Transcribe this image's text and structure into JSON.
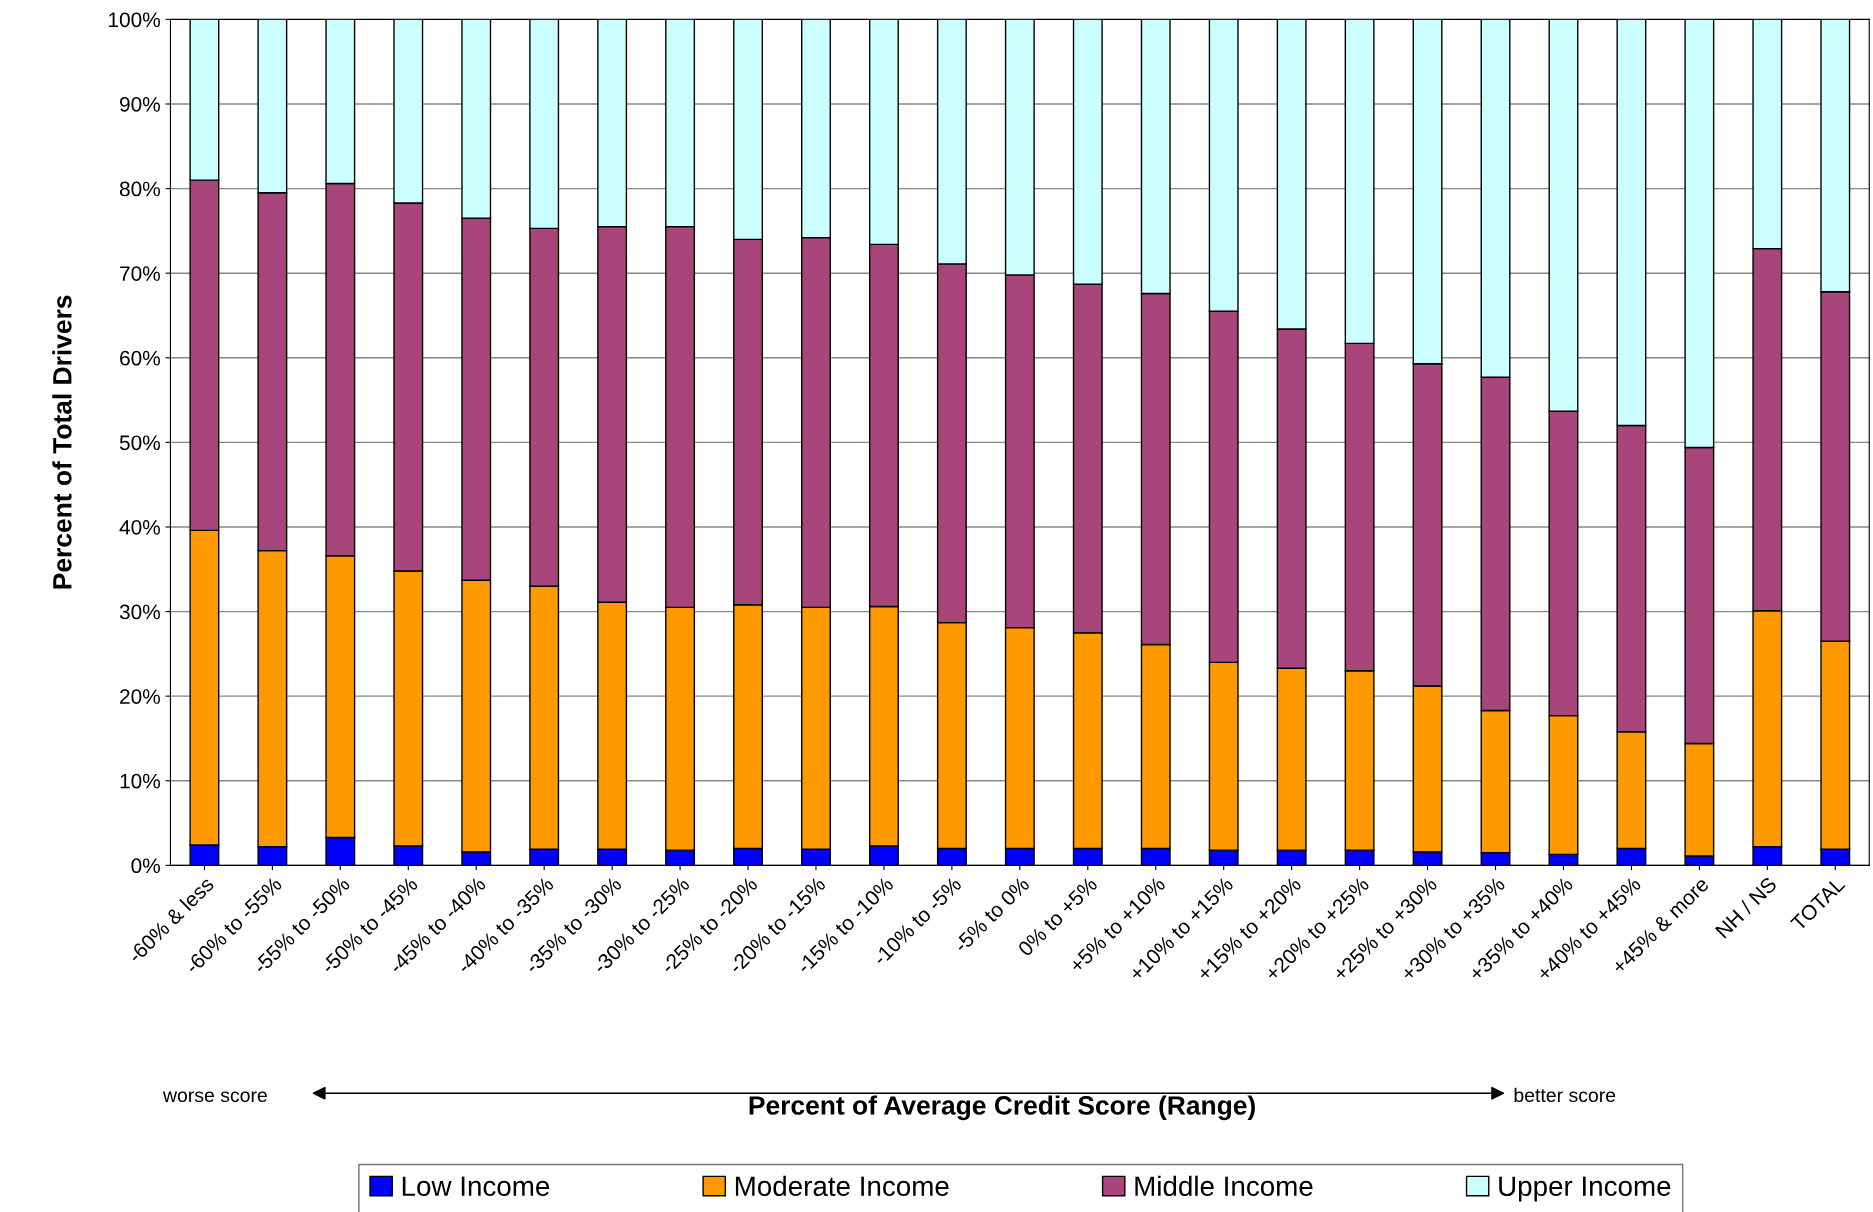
{
  "chart_data": {
    "type": "bar",
    "stacked": true,
    "xlabel": "Percent of Average Credit Score (Range)",
    "ylabel": "Percent of Total Drivers",
    "categories": [
      "-60% & less",
      "-60% to -55%",
      "-55% to -50%",
      "-50% to -45%",
      "-45% to -40%",
      "-40% to -35%",
      "-35% to -30%",
      "-30% to -25%",
      "-25% to -20%",
      "-20% to -15%",
      "-15% to -10%",
      "-10% to -5%",
      "-5% to 0%",
      "0% to +5%",
      "+5% to +10%",
      "+10% to +15%",
      "+15% to +20%",
      "+20% to +25%",
      "+25% to +30%",
      "+30% to +35%",
      "+35% to +40%",
      "+40% to +45%",
      "+45% & more",
      "NH / NS",
      "TOTAL"
    ],
    "series": [
      {
        "name": "Low Income",
        "color": "#0000ff",
        "values": [
          2.4,
          2.2,
          3.3,
          2.3,
          1.6,
          1.9,
          1.9,
          1.8,
          2.0,
          1.9,
          2.3,
          2.0,
          2.0,
          2.0,
          2.0,
          1.8,
          1.8,
          1.8,
          1.6,
          1.5,
          1.3,
          2.0,
          1.1,
          2.2,
          1.9
        ]
      },
      {
        "name": "Moderate Income",
        "color": "#ff9900",
        "values": [
          37.2,
          35.0,
          33.3,
          32.5,
          32.1,
          31.1,
          29.2,
          28.7,
          28.8,
          28.6,
          28.3,
          26.7,
          26.1,
          25.5,
          24.1,
          22.2,
          21.5,
          21.2,
          19.6,
          16.8,
          16.4,
          13.8,
          13.3,
          27.9,
          24.6
        ]
      },
      {
        "name": "Middle Income",
        "color": "#a8457a",
        "values": [
          41.4,
          42.3,
          44.0,
          43.5,
          42.8,
          42.3,
          44.4,
          45.0,
          43.2,
          43.7,
          42.8,
          42.4,
          41.7,
          41.2,
          41.5,
          41.5,
          40.1,
          38.7,
          38.1,
          39.4,
          36.0,
          36.2,
          35.0,
          42.8,
          41.3
        ]
      },
      {
        "name": "Upper Income",
        "color": "#ccffff",
        "values": [
          19.0,
          20.5,
          19.4,
          21.7,
          23.5,
          24.7,
          24.5,
          24.5,
          26.0,
          25.8,
          26.6,
          28.9,
          30.2,
          31.3,
          32.4,
          34.5,
          36.6,
          38.3,
          40.7,
          42.3,
          46.3,
          48.0,
          50.6,
          27.1,
          32.2
        ]
      }
    ],
    "ylim": [
      0,
      100
    ],
    "yticks": [
      {
        "value": 0,
        "label": "0%"
      },
      {
        "value": 10,
        "label": "10%"
      },
      {
        "value": 20,
        "label": "20%"
      },
      {
        "value": 30,
        "label": "30%"
      },
      {
        "value": 40,
        "label": "40%"
      },
      {
        "value": 50,
        "label": "50%"
      },
      {
        "value": 60,
        "label": "60%"
      },
      {
        "value": 70,
        "label": "70%"
      },
      {
        "value": 80,
        "label": "80%"
      },
      {
        "value": 90,
        "label": "90%"
      },
      {
        "value": 100,
        "label": "100%"
      }
    ],
    "grid": "y",
    "legend": "bottom",
    "annotations": [
      "worse score",
      "better score"
    ]
  }
}
